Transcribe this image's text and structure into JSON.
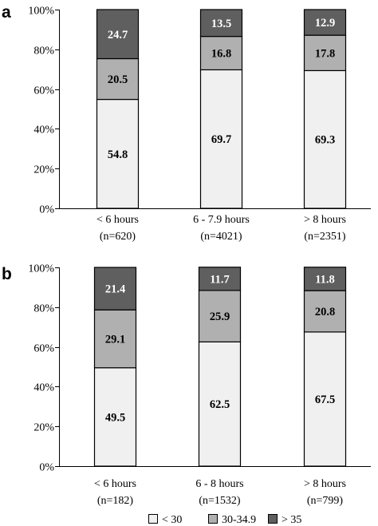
{
  "colors": {
    "low": "#f0f0f0",
    "mid": "#b0b0b0",
    "high": "#5f5f5f",
    "axis": "#000000",
    "label_dark": "#000000",
    "label_light": "#ffffff"
  },
  "legend": {
    "items": [
      {
        "key": "low",
        "label": "< 30"
      },
      {
        "key": "mid",
        "label": "30-34.9"
      },
      {
        "key": "high",
        "label": "> 35"
      }
    ]
  },
  "chart_data": [
    {
      "type": "bar",
      "stacked": true,
      "panel": "a",
      "y_ticks": [
        "0%",
        "20%",
        "40%",
        "60%",
        "80%",
        "100%"
      ],
      "ylim": [
        0,
        100
      ],
      "categories": [
        {
          "line1": "< 6 hours",
          "line2": "(n=620)"
        },
        {
          "line1": "6 - 7.9 hours",
          "line2": "(n=4021)"
        },
        {
          "line1": "> 8 hours",
          "line2": "(n=2351)"
        }
      ],
      "series": [
        {
          "key": "low",
          "name": "< 30",
          "values": [
            54.8,
            69.7,
            69.3
          ]
        },
        {
          "key": "mid",
          "name": "30-34.9",
          "values": [
            20.5,
            16.8,
            17.8
          ]
        },
        {
          "key": "high",
          "name": "> 35",
          "values": [
            24.7,
            13.5,
            12.9
          ]
        }
      ]
    },
    {
      "type": "bar",
      "stacked": true,
      "panel": "b",
      "y_ticks": [
        "0%",
        "20%",
        "40%",
        "60%",
        "80%",
        "100%"
      ],
      "ylim": [
        0,
        100
      ],
      "categories": [
        {
          "line1": "< 6 hours",
          "line2": "(n=182)"
        },
        {
          "line1": "6 - 8 hours",
          "line2": "(n=1532)"
        },
        {
          "line1": "> 8 hours",
          "line2": "(n=799)"
        }
      ],
      "series": [
        {
          "key": "low",
          "name": "< 30",
          "values": [
            49.5,
            62.5,
            67.5
          ]
        },
        {
          "key": "mid",
          "name": "30-34.9",
          "values": [
            29.1,
            25.9,
            20.8
          ]
        },
        {
          "key": "high",
          "name": "> 35",
          "values": [
            21.4,
            11.7,
            11.8
          ]
        }
      ]
    }
  ]
}
